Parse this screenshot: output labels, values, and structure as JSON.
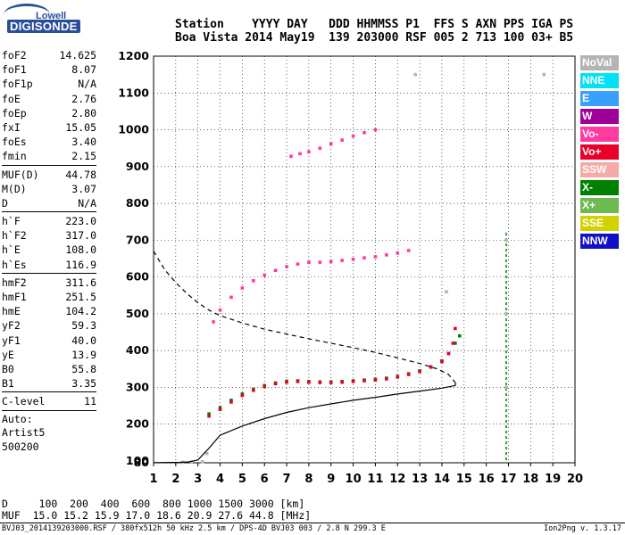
{
  "logo": {
    "top": "Lowell",
    "bottom": "DIGISONDE"
  },
  "header": {
    "line1": "Station    YYYY DAY   DDD HHMMSS P1  FFS S AXN PPS IGA PS",
    "line2": "Boa Vista 2014 May19  139 203000 RSF 005 2 713 100 03+ B5"
  },
  "params": [
    {
      "name": "foF2",
      "value": "14.625"
    },
    {
      "name": "foF1",
      "value": "8.07"
    },
    {
      "name": "foF1p",
      "value": "N/A"
    },
    {
      "name": "foE",
      "value": "2.76"
    },
    {
      "name": "foEp",
      "value": "2.80"
    },
    {
      "name": "fxI",
      "value": "15.05"
    },
    {
      "name": "foEs",
      "value": "3.40"
    },
    {
      "name": "fmin",
      "value": "2.15"
    },
    {
      "name": "MUF(D)",
      "value": "44.78",
      "sep": true
    },
    {
      "name": "M(D)",
      "value": "3.07"
    },
    {
      "name": "D",
      "value": "N/A"
    },
    {
      "name": "h`F",
      "value": "223.0",
      "sep": true
    },
    {
      "name": "h`F2",
      "value": "317.0"
    },
    {
      "name": "h`E",
      "value": "108.0"
    },
    {
      "name": "h`Es",
      "value": "116.9"
    },
    {
      "name": "hmF2",
      "value": "311.6",
      "sep": true
    },
    {
      "name": "hmF1",
      "value": "251.5"
    },
    {
      "name": "hmE",
      "value": "104.2"
    },
    {
      "name": "yF2",
      "value": "59.3"
    },
    {
      "name": "yF1",
      "value": "40.0"
    },
    {
      "name": "yE",
      "value": "13.9"
    },
    {
      "name": "B0",
      "value": "55.8"
    },
    {
      "name": "B1",
      "value": "3.35"
    },
    {
      "name": "C-level",
      "value": "11",
      "sep": true
    }
  ],
  "autoscale": {
    "line1": "Auto:",
    "line2": "Artist5",
    "line3": "500200"
  },
  "legend": [
    {
      "label": "NoVal",
      "color": "#b4b4b4"
    },
    {
      "label": "NNE",
      "color": "#00e1f5"
    },
    {
      "label": "E",
      "color": "#3aa0ff"
    },
    {
      "label": "W",
      "color": "#a0009a"
    },
    {
      "label": "Vo-",
      "color": "#ff3aa0"
    },
    {
      "label": "Vo+",
      "color": "#e8002a"
    },
    {
      "label": "SSW",
      "color": "#f5aaa5"
    },
    {
      "label": "X-",
      "color": "#008000"
    },
    {
      "label": "X+",
      "color": "#6cba50"
    },
    {
      "label": "SSE",
      "color": "#d2d200"
    },
    {
      "label": "NNW",
      "color": "#1010c8"
    }
  ],
  "bottom": {
    "d_row": "D     100  200  400  600  800 1000 1500 3000 [km]",
    "muf_row": "MUF  15.0 15.2 15.9 17.0 18.6 20.9 27.6 44.8 [MHz]"
  },
  "footer": {
    "left": "BVJ03_2014139203000.RSF / 380fx512h 50 kHz 2.5 km / DPS-4D BVJ03 003 / 2.8 N 299.3 E",
    "right": "Ion2Png v. 1.3.17"
  },
  "chart_data": {
    "type": "scatter",
    "xlabel": "",
    "ylabel": "",
    "xlim": [
      1,
      20
    ],
    "ylim": [
      80,
      1200
    ],
    "x_ticks": [
      1,
      2,
      3,
      4,
      5,
      6,
      7,
      8,
      9,
      10,
      11,
      12,
      13,
      14,
      15,
      16,
      17,
      18,
      19,
      20
    ],
    "y_ticks": [
      80,
      100,
      200,
      300,
      400,
      500,
      600,
      700,
      800,
      900,
      1000,
      1100,
      1200
    ],
    "grid": true,
    "series": [
      {
        "name": "X-",
        "color": "#008000",
        "style": "points",
        "points": [
          [
            3.5,
            228
          ],
          [
            4,
            245
          ],
          [
            4.5,
            265
          ],
          [
            5,
            282
          ],
          [
            5.5,
            295
          ],
          [
            6,
            305
          ],
          [
            6.5,
            312
          ],
          [
            7,
            317
          ],
          [
            7.5,
            318
          ],
          [
            8,
            316
          ],
          [
            8.5,
            315
          ],
          [
            9,
            315
          ],
          [
            9.5,
            316
          ],
          [
            10,
            318
          ],
          [
            10.5,
            320
          ],
          [
            11,
            322
          ],
          [
            11.5,
            325
          ],
          [
            12,
            330
          ],
          [
            12.5,
            337
          ],
          [
            13,
            345
          ],
          [
            13.5,
            356
          ],
          [
            14,
            372
          ],
          [
            14.3,
            392
          ],
          [
            14.6,
            420
          ],
          [
            14.8,
            440
          ]
        ]
      },
      {
        "name": "Vo+",
        "color": "#e8002a",
        "style": "points",
        "points": [
          [
            3.5,
            222
          ],
          [
            4,
            240
          ],
          [
            4.5,
            260
          ],
          [
            5,
            278
          ],
          [
            5.5,
            292
          ],
          [
            6,
            302
          ],
          [
            6.5,
            310
          ],
          [
            7,
            314
          ],
          [
            7.5,
            316
          ],
          [
            8,
            314
          ],
          [
            8.5,
            313
          ],
          [
            9,
            313
          ],
          [
            9.5,
            314
          ],
          [
            10,
            316
          ],
          [
            10.5,
            318
          ],
          [
            11,
            320
          ],
          [
            11.5,
            323
          ],
          [
            12,
            328
          ],
          [
            12.5,
            335
          ],
          [
            13,
            343
          ],
          [
            13.5,
            355
          ],
          [
            14,
            370
          ],
          [
            14.3,
            392
          ],
          [
            14.5,
            420
          ],
          [
            14.6,
            460
          ]
        ]
      },
      {
        "name": "Vo-",
        "color": "#ff3aa0",
        "style": "points",
        "points": [
          [
            3.7,
            478
          ],
          [
            4,
            510
          ],
          [
            4.5,
            545
          ],
          [
            5,
            570
          ],
          [
            5.5,
            590
          ],
          [
            6,
            605
          ],
          [
            6.5,
            618
          ],
          [
            7,
            628
          ],
          [
            7.5,
            635
          ],
          [
            8,
            640
          ],
          [
            8.5,
            640
          ],
          [
            9,
            642
          ],
          [
            9.5,
            645
          ],
          [
            10,
            648
          ],
          [
            10.5,
            652
          ],
          [
            11,
            655
          ],
          [
            11.5,
            660
          ],
          [
            12,
            665
          ],
          [
            12.5,
            672
          ],
          [
            7.2,
            928
          ],
          [
            7.6,
            935
          ],
          [
            8,
            940
          ],
          [
            8.5,
            950
          ],
          [
            9,
            962
          ],
          [
            9.5,
            972
          ],
          [
            10,
            983
          ],
          [
            10.5,
            992
          ],
          [
            11,
            1000
          ]
        ]
      },
      {
        "name": "NoVal",
        "color": "#b4b4b4",
        "style": "points",
        "points": [
          [
            2.3,
            85
          ],
          [
            2.7,
            88
          ],
          [
            3.2,
            92
          ],
          [
            3.4,
            120
          ],
          [
            16.9,
            300
          ],
          [
            16.9,
            500
          ],
          [
            16.9,
            700
          ],
          [
            12.8,
            1150
          ],
          [
            14.2,
            560
          ],
          [
            18.6,
            1150
          ]
        ]
      },
      {
        "name": "Profile",
        "color": "#000000",
        "style": "line",
        "points": [
          [
            1,
            82
          ],
          [
            2.2,
            85
          ],
          [
            2.6,
            90
          ],
          [
            3,
            103
          ],
          [
            3.5,
            135
          ],
          [
            4,
            170
          ],
          [
            5,
            195
          ],
          [
            6,
            215
          ],
          [
            7,
            232
          ],
          [
            8,
            245
          ],
          [
            9,
            255
          ],
          [
            10,
            265
          ],
          [
            11,
            273
          ],
          [
            12,
            282
          ],
          [
            13,
            290
          ],
          [
            14,
            298
          ],
          [
            14.6,
            305
          ],
          [
            14.62,
            312
          ]
        ]
      },
      {
        "name": "Model",
        "color": "#000000",
        "style": "dashed",
        "points": [
          [
            1,
            670
          ],
          [
            1.5,
            620
          ],
          [
            2,
            585
          ],
          [
            2.5,
            555
          ],
          [
            3,
            530
          ],
          [
            3.5,
            510
          ],
          [
            4,
            495
          ],
          [
            5,
            475
          ],
          [
            6,
            458
          ],
          [
            7,
            445
          ],
          [
            8,
            432
          ],
          [
            9,
            420
          ],
          [
            10,
            408
          ],
          [
            11,
            395
          ],
          [
            12,
            380
          ],
          [
            13,
            365
          ],
          [
            13.8,
            350
          ],
          [
            14.3,
            335
          ],
          [
            14.62,
            312
          ]
        ]
      }
    ],
    "vertical_line_x": 16.9
  }
}
